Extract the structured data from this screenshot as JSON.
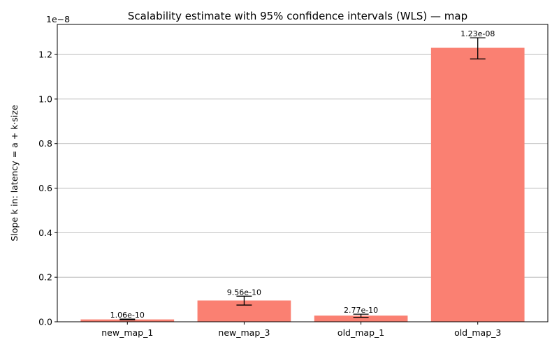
{
  "chart_data": {
    "type": "bar",
    "title": "Scalability estimate with 95% confidence intervals (WLS) — map",
    "xlabel": "",
    "ylabel": "Slope k in: latency = a + k·size",
    "y_scale_text": "1e−8",
    "y_scale_factor": 1e-08,
    "categories": [
      "new_map_1",
      "new_map_3",
      "old_map_1",
      "old_map_3"
    ],
    "values": [
      1.06e-10,
      9.56e-10,
      2.77e-10,
      1.23e-08
    ],
    "ci_low": [
      9e-11,
      7.5e-10,
      2e-10,
      1.18e-08
    ],
    "ci_high": [
      1.2e-10,
      1.15e-09,
      3.4e-10,
      1.275e-08
    ],
    "value_labels": [
      "1.06e-10",
      "9.56e-10",
      "2.77e-10",
      "1.23e-08"
    ],
    "y_ticks": [
      0.0,
      0.2,
      0.4,
      0.6,
      0.8,
      1.0,
      1.2
    ],
    "y_tick_labels": [
      "0.0",
      "0.2",
      "0.4",
      "0.6",
      "0.8",
      "1.0",
      "1.2"
    ],
    "ylim": [
      0,
      1.335
    ],
    "grid": "y",
    "bar_color": "#FA8072",
    "error_bar_color": "#000000",
    "grid_color": "#b0b0b0"
  }
}
